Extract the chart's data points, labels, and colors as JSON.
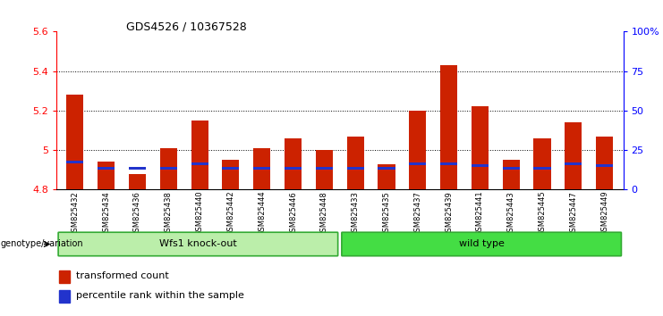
{
  "title": "GDS4526 / 10367528",
  "samples": [
    "GSM825432",
    "GSM825434",
    "GSM825436",
    "GSM825438",
    "GSM825440",
    "GSM825442",
    "GSM825444",
    "GSM825446",
    "GSM825448",
    "GSM825433",
    "GSM825435",
    "GSM825437",
    "GSM825439",
    "GSM825441",
    "GSM825443",
    "GSM825445",
    "GSM825447",
    "GSM825449"
  ],
  "red_values": [
    5.28,
    4.94,
    4.88,
    5.01,
    5.15,
    4.95,
    5.01,
    5.06,
    5.0,
    5.07,
    4.93,
    5.2,
    5.43,
    5.22,
    4.95,
    5.06,
    5.14,
    5.07
  ],
  "blue_values": [
    4.94,
    4.91,
    4.91,
    4.91,
    4.93,
    4.91,
    4.91,
    4.91,
    4.91,
    4.91,
    4.91,
    4.93,
    4.93,
    4.92,
    4.91,
    4.91,
    4.93,
    4.92
  ],
  "ymin": 4.8,
  "ymax": 5.6,
  "yticks_left": [
    4.8,
    5.0,
    5.2,
    5.4,
    5.6
  ],
  "ytick_labels_left": [
    "4.8",
    "5",
    "5.2",
    "5.4",
    "5.6"
  ],
  "yticks_right_pct": [
    0,
    25,
    50,
    75,
    100
  ],
  "ytick_labels_right": [
    "0",
    "25",
    "50",
    "75",
    "100%"
  ],
  "groups": [
    {
      "label": "Wfs1 knock-out",
      "start": 0,
      "end": 9,
      "color": "#bbeeaa"
    },
    {
      "label": "wild type",
      "start": 9,
      "end": 18,
      "color": "#44dd44"
    }
  ],
  "group_row_label": "genotype/variation",
  "legend_red": "transformed count",
  "legend_blue": "percentile rank within the sample",
  "bar_width": 0.55,
  "bar_color_red": "#cc2200",
  "bar_color_blue": "#2233cc",
  "bar_baseline": 4.8
}
